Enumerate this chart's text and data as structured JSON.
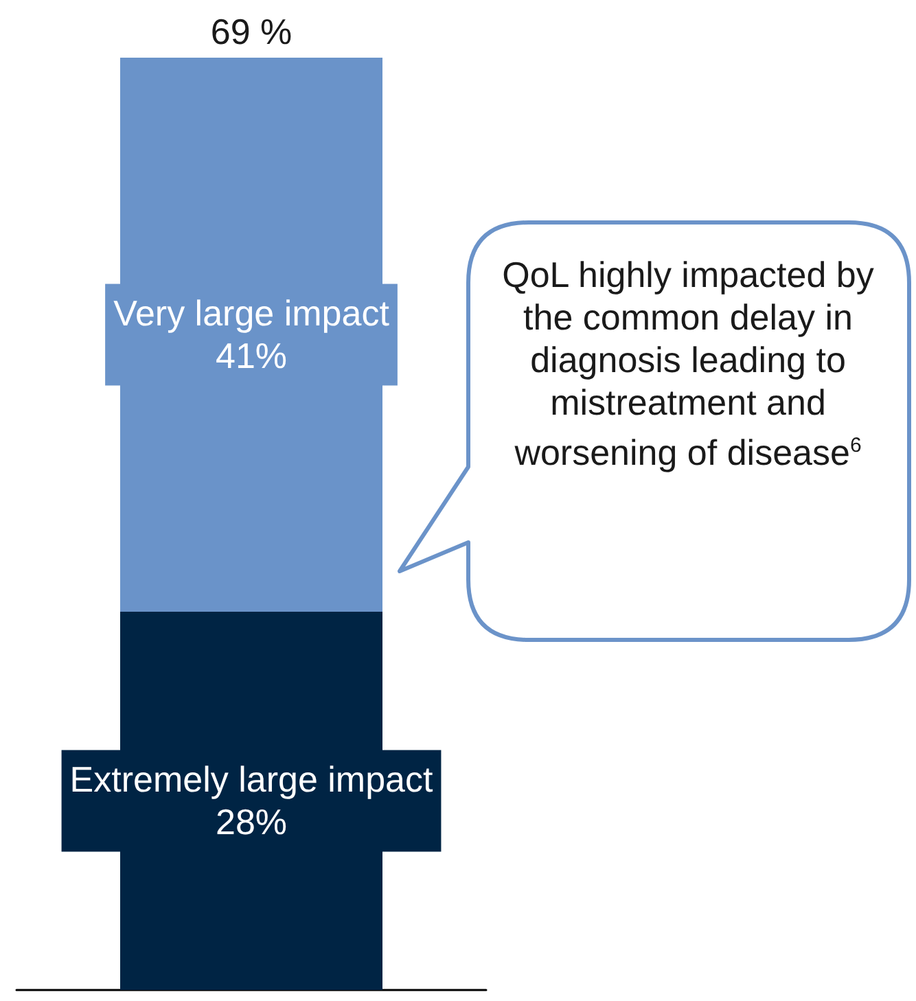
{
  "chart_data": {
    "type": "bar",
    "stacked": true,
    "categories": [
      null
    ],
    "series": [
      {
        "name": "Extremely large impact",
        "color": "#002444",
        "values": [
          28
        ],
        "value_labels": [
          "28%"
        ]
      },
      {
        "name": "Very large impact",
        "color": "#6a93c9",
        "values": [
          41
        ],
        "value_labels": [
          "41%"
        ]
      }
    ],
    "totals": [
      "69 %"
    ],
    "annotations": [
      "QoL highly impacted by the common delay in diagnosis leading to mistreatment and worsening of disease$^{6}$"
    ],
    "grid": false,
    "legend": false
  }
}
